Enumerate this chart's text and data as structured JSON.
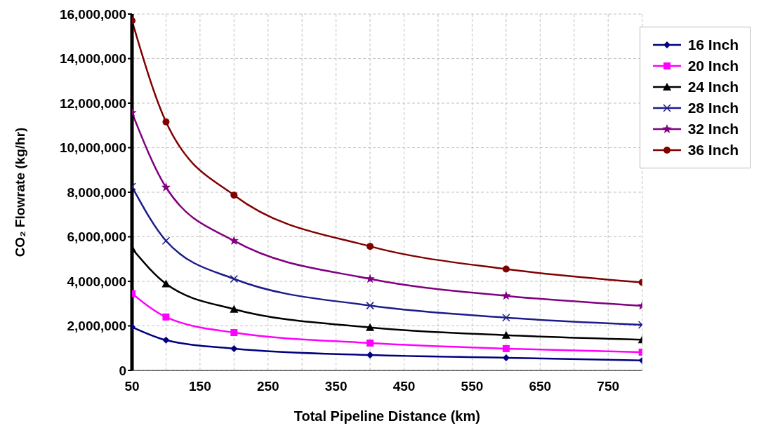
{
  "chart_data": {
    "type": "line",
    "xlabel": "Total Pipeline Distance (km)",
    "ylabel": "CO₂ Flowrate (kg/hr)",
    "x": [
      50,
      100,
      200,
      400,
      600,
      800
    ],
    "xlim": [
      50,
      800
    ],
    "xticks": [
      50,
      {
        "value": 100,
        "label": null
      },
      150,
      {
        "value": 200,
        "label": null
      },
      250,
      {
        "value": 300,
        "label": null
      },
      350,
      {
        "value": 400,
        "label": null
      },
      450,
      {
        "value": 500,
        "label": null
      },
      550,
      {
        "value": 600,
        "label": null
      },
      650,
      {
        "value": 700,
        "label": null
      },
      750,
      {
        "value": 800,
        "label": null
      }
    ],
    "ylim": [
      0,
      16000000
    ],
    "yticks": [
      0,
      {
        "value": 2000000,
        "label": "2,000,000"
      },
      {
        "value": 4000000,
        "label": "4,000,000"
      },
      {
        "value": 6000000,
        "label": "6,000,000"
      },
      {
        "value": 8000000,
        "label": "8,000,000"
      },
      {
        "value": 10000000,
        "label": "10,000,000"
      },
      {
        "value": 12000000,
        "label": "12,000,000"
      },
      {
        "value": 14000000,
        "label": "14,000,000"
      },
      {
        "value": 16000000,
        "label": "16,000,000"
      }
    ],
    "grid": true,
    "legend": "top right",
    "line_style": "solid",
    "series": [
      {
        "name": "16 Inch",
        "color": "#000080",
        "marker": "diamond",
        "values": [
          1950000,
          1360000,
          980000,
          690000,
          570000,
          450000
        ]
      },
      {
        "name": "20 Inch",
        "color": "#ff00ff",
        "marker": "square",
        "values": [
          3450000,
          2400000,
          1700000,
          1230000,
          980000,
          820000
        ]
      },
      {
        "name": "24 Inch",
        "color": "#000000",
        "marker": "triangle",
        "values": [
          5470000,
          3890000,
          2750000,
          1930000,
          1580000,
          1380000
        ]
      },
      {
        "name": "28 Inch",
        "color": "#1c1c8c",
        "marker": "cross",
        "values": [
          8250000,
          5820000,
          4110000,
          2910000,
          2370000,
          2050000
        ]
      },
      {
        "name": "32 Inch",
        "color": "#800080",
        "marker": "star",
        "values": [
          11570000,
          8220000,
          5820000,
          4110000,
          3350000,
          2900000
        ]
      },
      {
        "name": "36 Inch",
        "color": "#800000",
        "marker": "circle",
        "values": [
          15700000,
          11160000,
          7870000,
          5570000,
          4550000,
          3950000
        ]
      }
    ]
  }
}
